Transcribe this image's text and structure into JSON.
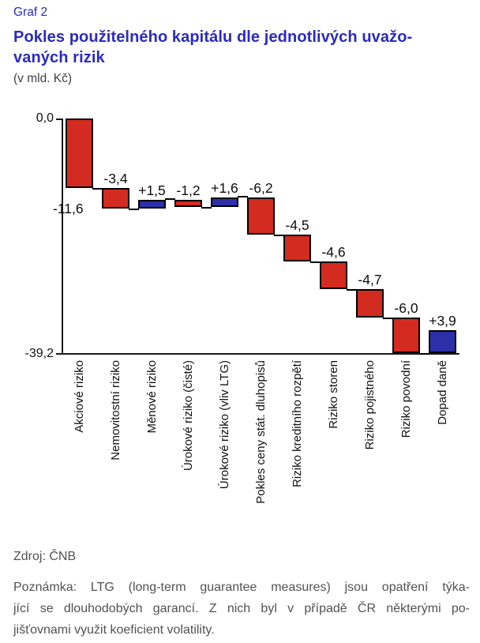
{
  "header": {
    "graf_label": "Graf 2",
    "title_line1": "Pokles použitelného kapitálu dle jednotlivých uvažo-",
    "title_line2": "vaných rizik",
    "subtitle": "(v mld. Kč)"
  },
  "chart_data": {
    "type": "bar",
    "subtype": "waterfall",
    "title": "Pokles použitelného kapitálu dle jednotlivých uvažovaných rizik",
    "unit": "v mld. Kč",
    "categories": [
      "Akciové riziko",
      "Nemovitostní riziko",
      "Měnové riziko",
      "Úrokové riziko (čisté)",
      "Úrokové riziko (vliv LTG)",
      "Pokles ceny stát. dluhopisů",
      "Riziko kreditního rozpětí",
      "Riziko storen",
      "Riziko pojistného",
      "Riziko povodní",
      "Dopad daně"
    ],
    "values": [
      -11.6,
      -3.4,
      1.5,
      -1.2,
      1.6,
      -6.2,
      -4.5,
      -4.6,
      -4.7,
      -6.0,
      3.9
    ],
    "bar_labels": [
      "-11,6",
      "-3,4",
      "+1,5",
      "-1,2",
      "+1,6",
      "-6,2",
      "-4,5",
      "-4,6",
      "-4,7",
      "-6,0",
      "+3,9"
    ],
    "y_axis": {
      "max": 0,
      "min": -39.2,
      "top_label": "0,0",
      "bottom_label": "-39,2"
    },
    "grid": false,
    "legend": false,
    "colors": {
      "negative": "#d32b20",
      "positive": "#2b2fa8",
      "border": "#000000"
    }
  },
  "footer": {
    "source": "Zdroj: ČNB",
    "note_lines": [
      "Poznámka: LTG (long-term guarantee measures) jsou opatření týka-",
      "jící se dlouhodobých garancí. Z nich byl v případě ČR některými po-",
      "jišťovnami využit koeficient volatility."
    ]
  }
}
